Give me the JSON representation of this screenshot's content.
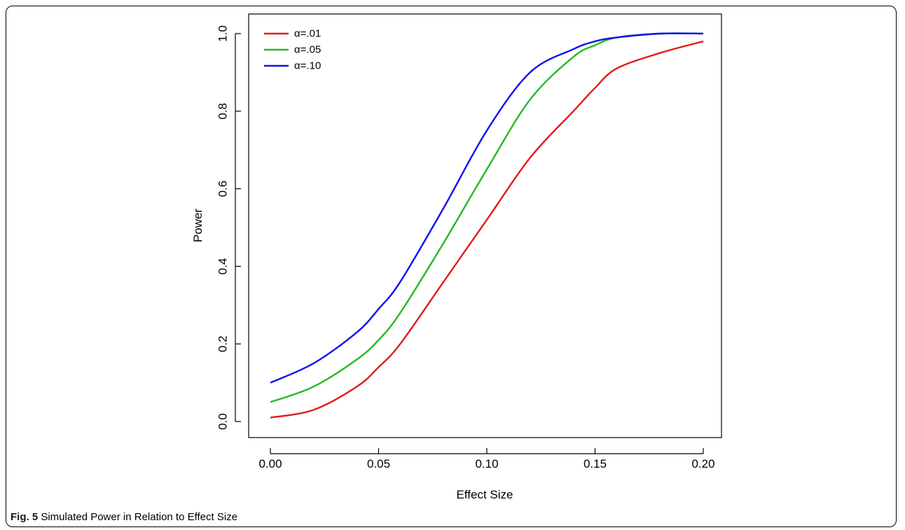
{
  "caption": {
    "label": "Fig. 5",
    "text": " Simulated Power in Relation to Effect Size"
  },
  "chart_data": {
    "type": "line",
    "title": "",
    "xlabel": "Effect Size",
    "ylabel": "Power",
    "xlim": [
      0.0,
      0.2
    ],
    "ylim": [
      0.0,
      1.0
    ],
    "x_ticks": [
      "0.00",
      "0.05",
      "0.10",
      "0.15",
      "0.20"
    ],
    "y_ticks": [
      "0.0",
      "0.2",
      "0.4",
      "0.6",
      "0.8",
      "1.0"
    ],
    "legend_position": "top-left",
    "x": [
      0.0,
      0.02,
      0.04,
      0.05,
      0.06,
      0.08,
      0.1,
      0.12,
      0.14,
      0.15,
      0.16,
      0.18,
      0.2
    ],
    "series": [
      {
        "name": "α=.01",
        "color": "#e41a1c",
        "values": [
          0.01,
          0.03,
          0.09,
          0.14,
          0.2,
          0.36,
          0.52,
          0.68,
          0.8,
          0.86,
          0.91,
          0.95,
          0.98
        ]
      },
      {
        "name": "α=.05",
        "color": "#22bb22",
        "values": [
          0.05,
          0.09,
          0.16,
          0.21,
          0.28,
          0.46,
          0.65,
          0.83,
          0.94,
          0.97,
          0.99,
          1.0,
          1.0
        ]
      },
      {
        "name": "α=.10",
        "color": "#1010ee",
        "values": [
          0.1,
          0.15,
          0.23,
          0.29,
          0.36,
          0.55,
          0.75,
          0.9,
          0.96,
          0.98,
          0.99,
          1.0,
          1.0
        ]
      }
    ]
  }
}
